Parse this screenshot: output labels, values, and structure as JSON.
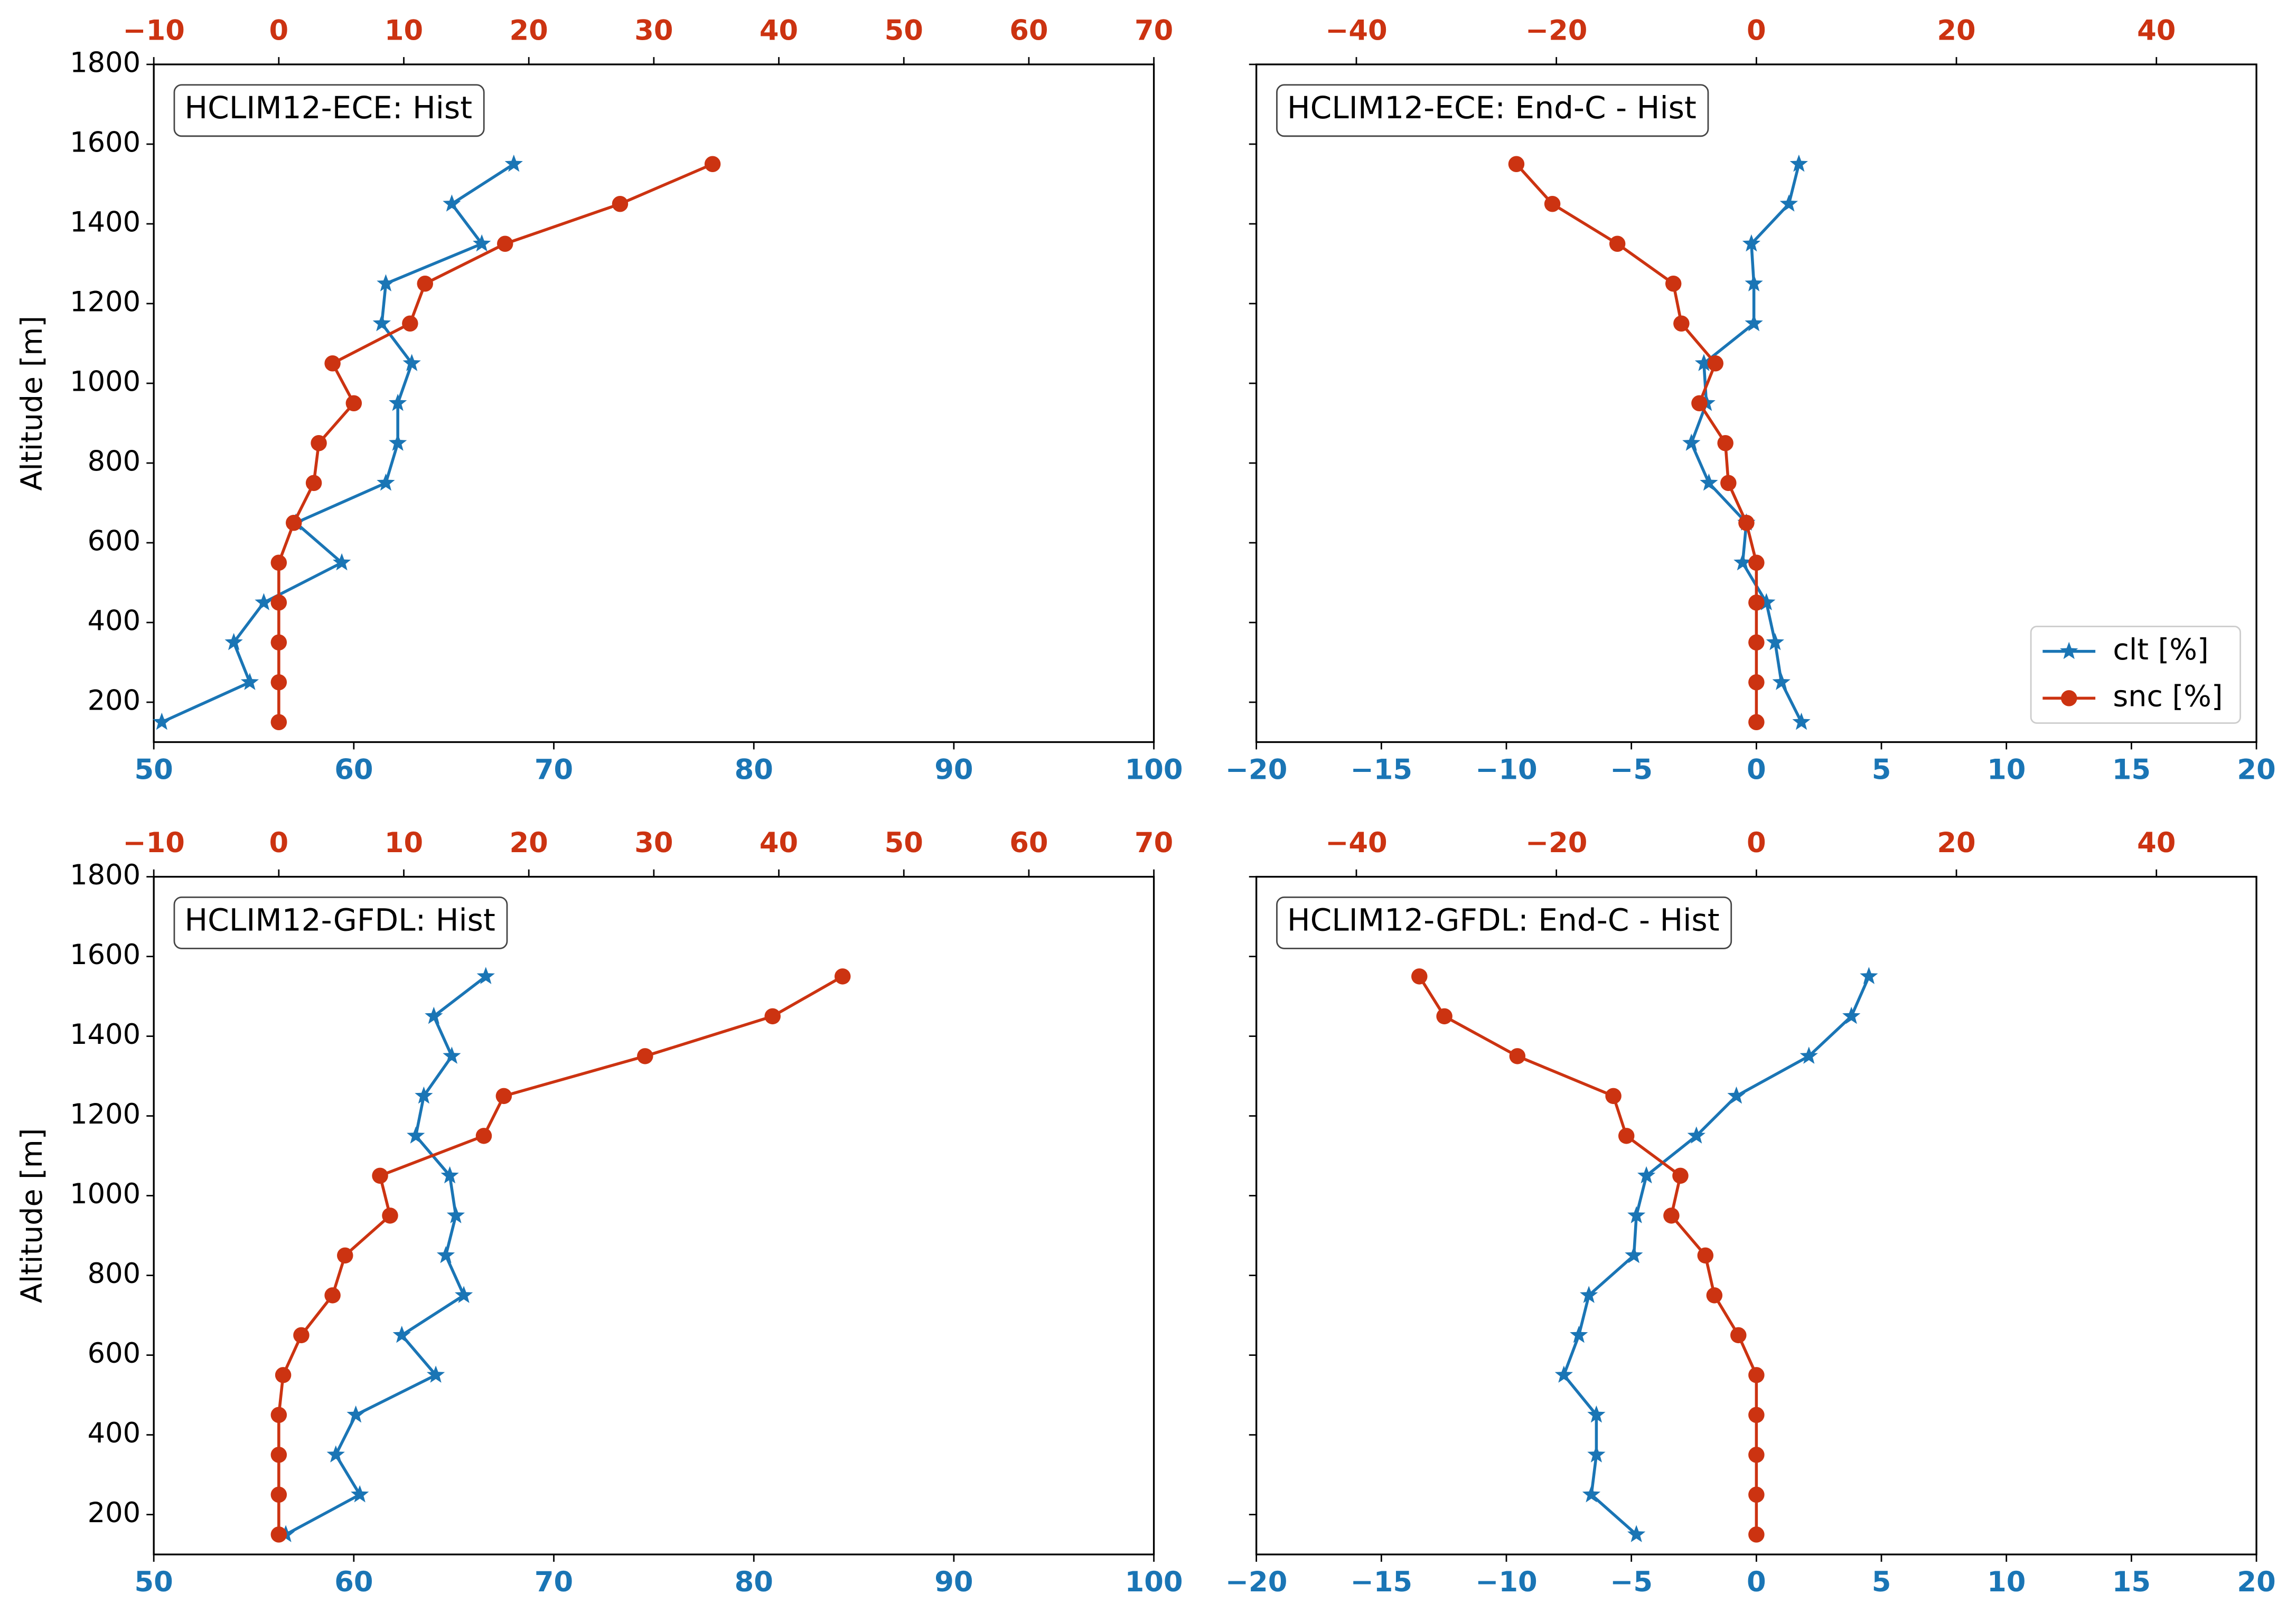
{
  "chart_data": [
    {
      "type": "line",
      "annotation": "HCLIM12-ECE: Hist",
      "ylabel": "Altitude [m]",
      "y": [
        150,
        250,
        350,
        450,
        550,
        650,
        750,
        850,
        950,
        1050,
        1150,
        1250,
        1350,
        1450,
        1550
      ],
      "ylim": [
        100,
        1800
      ],
      "yticks": [
        200,
        400,
        600,
        800,
        1000,
        1200,
        1400,
        1600,
        1800
      ],
      "xlim": [
        50,
        100
      ],
      "xticks": [
        50,
        60,
        70,
        80,
        90,
        100
      ],
      "xcolor": "#1a75b5",
      "x2lim": [
        -10,
        70
      ],
      "x2ticks": [
        {
          "value": -10,
          "label": "−10"
        },
        0,
        10,
        20,
        30,
        40,
        50,
        60,
        70
      ],
      "x2color": "#cc3311",
      "series": [
        {
          "color": "#1a75b5",
          "marker": "star",
          "axis": "x",
          "values": [
            50.4,
            54.8,
            54.0,
            55.5,
            59.4,
            57.1,
            61.6,
            62.2,
            62.2,
            62.9,
            61.4,
            61.6,
            66.4,
            64.9,
            68.0
          ]
        },
        {
          "color": "#cc3311",
          "marker": "circle",
          "axis": "x2",
          "values": [
            0,
            0,
            0,
            0,
            0,
            1.2,
            2.8,
            3.2,
            6.0,
            4.3,
            10.5,
            11.7,
            18.1,
            27.3,
            34.7
          ]
        }
      ]
    },
    {
      "type": "line",
      "annotation": "HCLIM12-ECE: End-C - Hist",
      "y": [
        150,
        250,
        350,
        450,
        550,
        650,
        750,
        850,
        950,
        1050,
        1150,
        1250,
        1350,
        1450,
        1550
      ],
      "ylim": [
        100,
        1800
      ],
      "yticks": [
        200,
        400,
        600,
        800,
        1000,
        1200,
        1400,
        1600,
        1800
      ],
      "xlim": [
        -20,
        20
      ],
      "xticks": [
        {
          "value": -20,
          "label": "−20"
        },
        {
          "value": -15,
          "label": "−15"
        },
        {
          "value": -10,
          "label": "−10"
        },
        {
          "value": -5,
          "label": "−5"
        },
        0,
        5,
        10,
        15,
        20
      ],
      "xcolor": "#1a75b5",
      "x2lim": [
        -50,
        50
      ],
      "x2ticks": [
        {
          "value": -40,
          "label": "−40"
        },
        {
          "value": -20,
          "label": "−20"
        },
        0,
        20,
        40
      ],
      "x2color": "#cc3311",
      "legend": "lower right",
      "series": [
        {
          "name": "clt [%]",
          "color": "#1a75b5",
          "marker": "star",
          "axis": "x",
          "values": [
            1.8,
            1.0,
            0.75,
            0.4,
            -0.55,
            -0.4,
            -1.9,
            -2.6,
            -2.0,
            -2.1,
            -0.1,
            -0.1,
            -0.2,
            1.3,
            1.7
          ]
        },
        {
          "name": "snc [%]",
          "color": "#cc3311",
          "marker": "circle",
          "axis": "x2",
          "values": [
            0,
            0,
            0,
            0,
            0,
            -1.0,
            -2.8,
            -3.1,
            -5.7,
            -4.1,
            -7.5,
            -8.3,
            -13.9,
            -20.4,
            -24.0
          ]
        }
      ]
    },
    {
      "type": "line",
      "annotation": "HCLIM12-GFDL: Hist",
      "ylabel": "Altitude [m]",
      "y": [
        150,
        250,
        350,
        450,
        550,
        650,
        750,
        850,
        950,
        1050,
        1150,
        1250,
        1350,
        1450,
        1550
      ],
      "ylim": [
        100,
        1800
      ],
      "yticks": [
        200,
        400,
        600,
        800,
        1000,
        1200,
        1400,
        1600,
        1800
      ],
      "xlim": [
        50,
        100
      ],
      "xticks": [
        50,
        60,
        70,
        80,
        90,
        100
      ],
      "xcolor": "#1a75b5",
      "x2lim": [
        -10,
        70
      ],
      "x2ticks": [
        {
          "value": -10,
          "label": "−10"
        },
        0,
        10,
        20,
        30,
        40,
        50,
        60,
        70
      ],
      "x2color": "#cc3311",
      "series": [
        {
          "color": "#1a75b5",
          "marker": "star",
          "axis": "x",
          "values": [
            56.6,
            60.3,
            59.1,
            60.1,
            64.1,
            62.4,
            65.5,
            64.6,
            65.1,
            64.8,
            63.1,
            63.5,
            64.9,
            64.0,
            66.6
          ]
        },
        {
          "color": "#cc3311",
          "marker": "circle",
          "axis": "x2",
          "values": [
            0,
            0,
            0,
            0,
            0.35,
            1.8,
            4.3,
            5.3,
            8.9,
            8.1,
            16.4,
            18.0,
            29.3,
            39.5,
            45.1
          ]
        }
      ]
    },
    {
      "type": "line",
      "annotation": "HCLIM12-GFDL: End-C - Hist",
      "y": [
        150,
        250,
        350,
        450,
        550,
        650,
        750,
        850,
        950,
        1050,
        1150,
        1250,
        1350,
        1450,
        1550
      ],
      "ylim": [
        100,
        1800
      ],
      "yticks": [
        200,
        400,
        600,
        800,
        1000,
        1200,
        1400,
        1600,
        1800
      ],
      "xlim": [
        -20,
        20
      ],
      "xticks": [
        {
          "value": -20,
          "label": "−20"
        },
        {
          "value": -15,
          "label": "−15"
        },
        {
          "value": -10,
          "label": "−10"
        },
        {
          "value": -5,
          "label": "−5"
        },
        0,
        5,
        10,
        15,
        20
      ],
      "xcolor": "#1a75b5",
      "x2lim": [
        -50,
        50
      ],
      "x2ticks": [
        {
          "value": -40,
          "label": "−40"
        },
        {
          "value": -20,
          "label": "−20"
        },
        0,
        20,
        40
      ],
      "x2color": "#cc3311",
      "series": [
        {
          "color": "#1a75b5",
          "marker": "star",
          "axis": "x",
          "values": [
            -4.8,
            -6.6,
            -6.4,
            -6.4,
            -7.7,
            -7.1,
            -6.7,
            -4.9,
            -4.8,
            -4.4,
            -2.4,
            -0.8,
            2.1,
            3.8,
            4.5
          ]
        },
        {
          "color": "#cc3311",
          "marker": "circle",
          "axis": "x2",
          "values": [
            0,
            0,
            0,
            0,
            0,
            -1.8,
            -4.2,
            -5.1,
            -8.5,
            -7.6,
            -13.0,
            -14.3,
            -23.9,
            -31.2,
            -33.7
          ]
        }
      ]
    }
  ]
}
